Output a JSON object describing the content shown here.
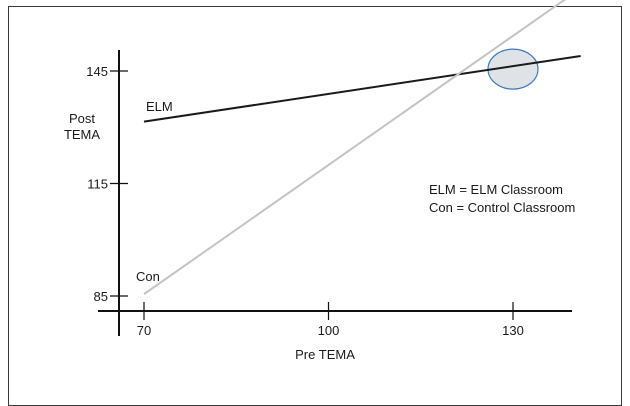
{
  "chart_data": {
    "type": "line",
    "xlabel": "Pre TEMA",
    "ylabel": [
      "Post",
      "TEMA"
    ],
    "x_ticks": [
      70,
      100,
      130
    ],
    "y_ticks": [
      85,
      115,
      145
    ],
    "xlim": [
      66,
      141
    ],
    "ylim": [
      85,
      145
    ],
    "series": [
      {
        "name": "ELM",
        "x": [
          70,
          141
        ],
        "y": [
          131.5,
          149
        ],
        "color": "#1a1a1a"
      },
      {
        "name": "Con",
        "x": [
          70,
          141
        ],
        "y": [
          85.5,
          167
        ],
        "color": "#c4c4c4"
      }
    ],
    "highlight": {
      "x": 130,
      "y": 145.5,
      "fill": "#dfe3e8",
      "stroke": "#3f79b7"
    },
    "legend": [
      "ELM = ELM Classroom",
      "Con = Control Classroom"
    ],
    "legend_position": "right"
  }
}
